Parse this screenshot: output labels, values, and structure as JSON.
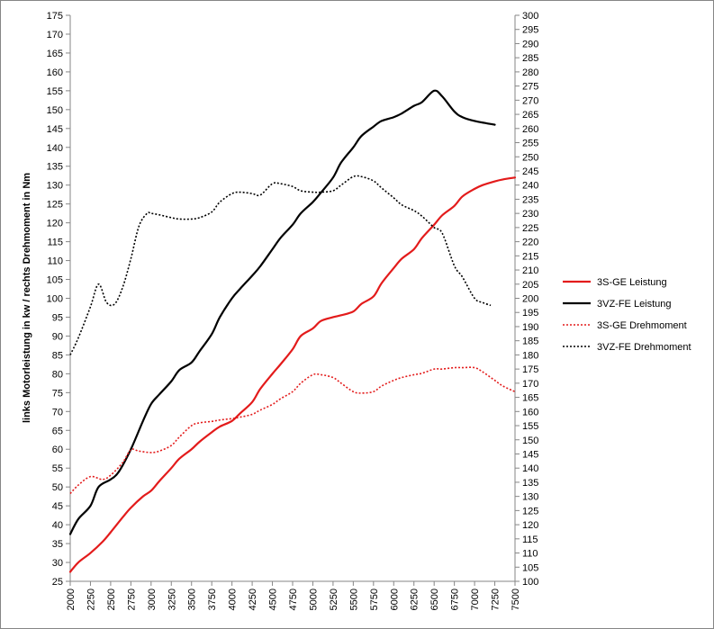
{
  "chart_data": {
    "type": "line",
    "title": "",
    "xlabel": "",
    "ylabel_left": "links Motorleistung in kw / rechts Drehmoment in Nm",
    "ylabel_right": "",
    "xlim": [
      2000,
      7500
    ],
    "ylim_left": [
      25,
      175
    ],
    "ylim_right": [
      100,
      300
    ],
    "x_ticks": [
      2000,
      2250,
      2500,
      2750,
      3000,
      3250,
      3500,
      3750,
      4000,
      4250,
      4500,
      4750,
      5000,
      5250,
      5500,
      5750,
      6000,
      6250,
      6500,
      6750,
      7000,
      7250,
      7500
    ],
    "y_ticks_left": [
      25,
      30,
      35,
      40,
      45,
      50,
      55,
      60,
      65,
      70,
      75,
      80,
      85,
      90,
      95,
      100,
      105,
      110,
      115,
      120,
      125,
      130,
      135,
      140,
      145,
      150,
      155,
      160,
      165,
      170,
      175
    ],
    "y_ticks_right": [
      100,
      105,
      110,
      115,
      120,
      125,
      130,
      135,
      140,
      145,
      150,
      155,
      160,
      165,
      170,
      175,
      180,
      185,
      190,
      195,
      200,
      205,
      210,
      215,
      220,
      225,
      230,
      235,
      240,
      245,
      250,
      255,
      260,
      265,
      270,
      275,
      280,
      285,
      290,
      295,
      300
    ],
    "grid": false,
    "legend_position": "right",
    "series": [
      {
        "name": "3S-GE Leistung",
        "axis": "left",
        "color": "#e31b1b",
        "dash": "solid",
        "points": [
          [
            2000,
            27.5
          ],
          [
            2100,
            30
          ],
          [
            2250,
            32.5
          ],
          [
            2400,
            35.5
          ],
          [
            2500,
            38
          ],
          [
            2650,
            42
          ],
          [
            2750,
            44.5
          ],
          [
            2900,
            47.5
          ],
          [
            3000,
            49
          ],
          [
            3100,
            51.5
          ],
          [
            3250,
            55
          ],
          [
            3350,
            57.5
          ],
          [
            3500,
            60
          ],
          [
            3600,
            62
          ],
          [
            3750,
            64.5
          ],
          [
            3850,
            66
          ],
          [
            4000,
            67.5
          ],
          [
            4100,
            69.5
          ],
          [
            4250,
            72.5
          ],
          [
            4350,
            76
          ],
          [
            4500,
            80
          ],
          [
            4600,
            82.5
          ],
          [
            4750,
            86.5
          ],
          [
            4850,
            90
          ],
          [
            5000,
            92
          ],
          [
            5100,
            94
          ],
          [
            5250,
            95
          ],
          [
            5350,
            95.5
          ],
          [
            5500,
            96.5
          ],
          [
            5600,
            98.5
          ],
          [
            5750,
            100.5
          ],
          [
            5850,
            104
          ],
          [
            6000,
            108
          ],
          [
            6100,
            110.5
          ],
          [
            6250,
            113
          ],
          [
            6350,
            116
          ],
          [
            6500,
            119.5
          ],
          [
            6600,
            122
          ],
          [
            6750,
            124.5
          ],
          [
            6850,
            127
          ],
          [
            7000,
            129
          ],
          [
            7100,
            130
          ],
          [
            7250,
            131
          ],
          [
            7350,
            131.5
          ],
          [
            7500,
            132
          ]
        ]
      },
      {
        "name": "3VZ-FE Leistung",
        "axis": "left",
        "color": "#000000",
        "dash": "solid",
        "points": [
          [
            2000,
            37.5
          ],
          [
            2100,
            41.5
          ],
          [
            2250,
            45
          ],
          [
            2350,
            50
          ],
          [
            2500,
            52
          ],
          [
            2600,
            54
          ],
          [
            2750,
            60
          ],
          [
            2900,
            67.5
          ],
          [
            3000,
            72
          ],
          [
            3100,
            74.5
          ],
          [
            3250,
            78
          ],
          [
            3350,
            81
          ],
          [
            3500,
            83
          ],
          [
            3600,
            86
          ],
          [
            3750,
            90.5
          ],
          [
            3850,
            95
          ],
          [
            4000,
            100
          ],
          [
            4100,
            102.5
          ],
          [
            4250,
            106
          ],
          [
            4350,
            108.5
          ],
          [
            4500,
            113
          ],
          [
            4600,
            116
          ],
          [
            4750,
            119.5
          ],
          [
            4850,
            122.5
          ],
          [
            5000,
            125.5
          ],
          [
            5100,
            128
          ],
          [
            5250,
            132
          ],
          [
            5350,
            136
          ],
          [
            5500,
            140
          ],
          [
            5600,
            143
          ],
          [
            5750,
            145.5
          ],
          [
            5850,
            147
          ],
          [
            6000,
            148
          ],
          [
            6100,
            149
          ],
          [
            6250,
            151
          ],
          [
            6350,
            152
          ],
          [
            6500,
            155
          ],
          [
            6600,
            153.5
          ],
          [
            6750,
            149.5
          ],
          [
            6850,
            148
          ],
          [
            7000,
            147
          ],
          [
            7250,
            146
          ]
        ]
      },
      {
        "name": "3S-GE Drehmoment",
        "axis": "right",
        "color": "#e31b1b",
        "dash": "dotted",
        "points": [
          [
            2000,
            131
          ],
          [
            2100,
            134
          ],
          [
            2250,
            137
          ],
          [
            2400,
            136
          ],
          [
            2500,
            137.5
          ],
          [
            2650,
            142
          ],
          [
            2750,
            146.5
          ],
          [
            2850,
            146
          ],
          [
            3000,
            145.5
          ],
          [
            3100,
            146
          ],
          [
            3250,
            148
          ],
          [
            3350,
            151
          ],
          [
            3500,
            155
          ],
          [
            3600,
            156
          ],
          [
            3750,
            156.5
          ],
          [
            3850,
            157
          ],
          [
            4000,
            157.5
          ],
          [
            4100,
            158
          ],
          [
            4250,
            159
          ],
          [
            4350,
            160.5
          ],
          [
            4500,
            162.5
          ],
          [
            4600,
            164.5
          ],
          [
            4750,
            167
          ],
          [
            4850,
            170
          ],
          [
            5000,
            173
          ],
          [
            5100,
            173
          ],
          [
            5250,
            172
          ],
          [
            5350,
            170
          ],
          [
            5500,
            167
          ],
          [
            5600,
            166.5
          ],
          [
            5750,
            167
          ],
          [
            5850,
            169
          ],
          [
            6000,
            171
          ],
          [
            6100,
            172
          ],
          [
            6250,
            173
          ],
          [
            6350,
            173.5
          ],
          [
            6500,
            175
          ],
          [
            6600,
            175
          ],
          [
            6750,
            175.5
          ],
          [
            6850,
            175.5
          ],
          [
            7000,
            175.5
          ],
          [
            7100,
            174
          ],
          [
            7250,
            171
          ],
          [
            7350,
            169
          ],
          [
            7500,
            167
          ]
        ]
      },
      {
        "name": "3VZ-FE Drehmoment",
        "axis": "right",
        "color": "#000000",
        "dash": "dotted",
        "points": [
          [
            2000,
            180
          ],
          [
            2100,
            186
          ],
          [
            2250,
            197
          ],
          [
            2350,
            205
          ],
          [
            2450,
            198.5
          ],
          [
            2550,
            198
          ],
          [
            2650,
            204
          ],
          [
            2750,
            214
          ],
          [
            2850,
            225.5
          ],
          [
            2950,
            230
          ],
          [
            3000,
            230
          ],
          [
            3100,
            229.5
          ],
          [
            3250,
            228.5
          ],
          [
            3350,
            228
          ],
          [
            3500,
            228
          ],
          [
            3600,
            228.5
          ],
          [
            3750,
            230.5
          ],
          [
            3850,
            234
          ],
          [
            4000,
            237
          ],
          [
            4100,
            237.5
          ],
          [
            4250,
            237
          ],
          [
            4350,
            236.5
          ],
          [
            4500,
            240.5
          ],
          [
            4600,
            240.5
          ],
          [
            4750,
            239.5
          ],
          [
            4850,
            238
          ],
          [
            5000,
            237.5
          ],
          [
            5100,
            237.5
          ],
          [
            5250,
            238
          ],
          [
            5350,
            240
          ],
          [
            5500,
            243
          ],
          [
            5600,
            243
          ],
          [
            5750,
            241.5
          ],
          [
            5850,
            239
          ],
          [
            6000,
            235.5
          ],
          [
            6100,
            233
          ],
          [
            6250,
            231
          ],
          [
            6350,
            229
          ],
          [
            6500,
            225
          ],
          [
            6600,
            223
          ],
          [
            6750,
            211.5
          ],
          [
            6850,
            207.5
          ],
          [
            7000,
            200
          ],
          [
            7100,
            198.5
          ],
          [
            7200,
            197.5
          ]
        ]
      }
    ]
  }
}
